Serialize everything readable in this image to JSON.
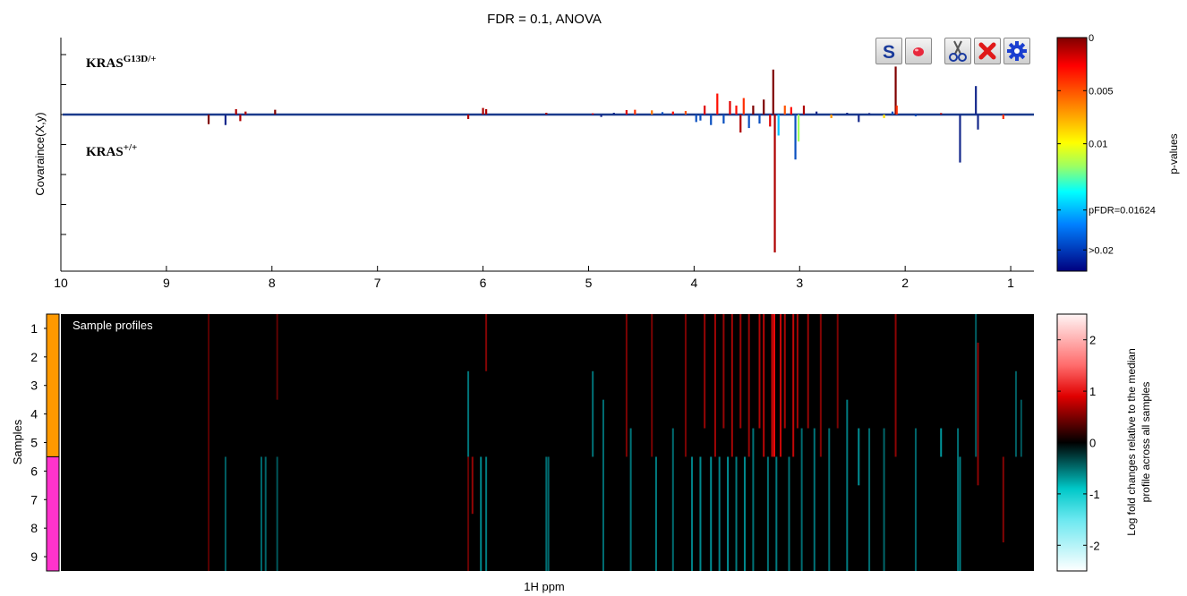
{
  "chart_data": [
    {
      "type": "line",
      "title": "FDR = 0.1, ANOVA",
      "xlabel": "",
      "ylabel": "Covaraince(X,y)",
      "xlim": [
        10,
        0.78
      ],
      "x_reversed": true,
      "x_ticks": [
        10,
        9,
        8,
        7,
        6,
        5,
        4,
        3,
        2,
        1
      ],
      "y_ticks_labeled": false,
      "annotations": [
        {
          "base": "KRAS",
          "sup": "G13D/+",
          "position": "top-left"
        },
        {
          "base": "KRAS",
          "sup": "+/+",
          "position": "left"
        }
      ],
      "series": [
        {
          "peaks": [
            {
              "x": 8.6,
              "y": -0.32,
              "p": 0.0
            },
            {
              "x": 8.44,
              "y": -0.35,
              "p": 0.03
            },
            {
              "x": 8.34,
              "y": 0.18,
              "p": 0.001
            },
            {
              "x": 8.3,
              "y": -0.22,
              "p": 0.001
            },
            {
              "x": 8.25,
              "y": 0.1,
              "p": 0.001
            },
            {
              "x": 7.97,
              "y": 0.16,
              "p": 0.0
            },
            {
              "x": 6.14,
              "y": -0.15,
              "p": 0.001
            },
            {
              "x": 6.0,
              "y": 0.22,
              "p": 0.001
            },
            {
              "x": 5.97,
              "y": 0.18,
              "p": 0.001
            },
            {
              "x": 5.4,
              "y": 0.06,
              "p": 0.001
            },
            {
              "x": 4.96,
              "y": 0.04,
              "p": 0.002
            },
            {
              "x": 4.88,
              "y": -0.08,
              "p": 0.03
            },
            {
              "x": 4.76,
              "y": 0.06,
              "p": 0.03
            },
            {
              "x": 4.64,
              "y": 0.15,
              "p": 0.002
            },
            {
              "x": 4.56,
              "y": 0.16,
              "p": 0.004
            },
            {
              "x": 4.4,
              "y": 0.14,
              "p": 0.006
            },
            {
              "x": 4.3,
              "y": 0.08,
              "p": 0.02
            },
            {
              "x": 4.2,
              "y": 0.1,
              "p": 0.003
            },
            {
              "x": 4.08,
              "y": 0.12,
              "p": 0.005
            },
            {
              "x": 3.98,
              "y": -0.25,
              "p": 0.02
            },
            {
              "x": 3.94,
              "y": -0.2,
              "p": 0.02
            },
            {
              "x": 3.9,
              "y": 0.3,
              "p": 0.002
            },
            {
              "x": 3.84,
              "y": -0.35,
              "p": 0.02
            },
            {
              "x": 3.78,
              "y": 0.7,
              "p": 0.003
            },
            {
              "x": 3.72,
              "y": -0.3,
              "p": 0.02
            },
            {
              "x": 3.66,
              "y": 0.45,
              "p": 0.002
            },
            {
              "x": 3.6,
              "y": 0.3,
              "p": 0.003
            },
            {
              "x": 3.56,
              "y": -0.6,
              "p": 0.001
            },
            {
              "x": 3.53,
              "y": 0.55,
              "p": 0.004
            },
            {
              "x": 3.48,
              "y": -0.45,
              "p": 0.02
            },
            {
              "x": 3.44,
              "y": 0.3,
              "p": 0.0
            },
            {
              "x": 3.38,
              "y": -0.3,
              "p": 0.02
            },
            {
              "x": 3.34,
              "y": 0.5,
              "p": 0.0
            },
            {
              "x": 3.28,
              "y": -0.4,
              "p": 0.002
            },
            {
              "x": 3.25,
              "y": 1.5,
              "p": 0.0
            },
            {
              "x": 3.235,
              "y": -4.6,
              "p": 0.001
            },
            {
              "x": 3.2,
              "y": -0.7,
              "p": 0.016
            },
            {
              "x": 3.14,
              "y": 0.3,
              "p": 0.005
            },
            {
              "x": 3.08,
              "y": 0.25,
              "p": 0.003
            },
            {
              "x": 3.04,
              "y": -1.5,
              "p": 0.02
            },
            {
              "x": 3.01,
              "y": -0.9,
              "p": 0.012
            },
            {
              "x": 2.96,
              "y": 0.3,
              "p": 0.001
            },
            {
              "x": 2.84,
              "y": 0.1,
              "p": 0.03
            },
            {
              "x": 2.7,
              "y": -0.12,
              "p": 0.007
            },
            {
              "x": 2.55,
              "y": 0.06,
              "p": 0.03
            },
            {
              "x": 2.44,
              "y": -0.25,
              "p": 0.03
            },
            {
              "x": 2.34,
              "y": 0.05,
              "p": 0.03
            },
            {
              "x": 2.2,
              "y": -0.12,
              "p": 0.009
            },
            {
              "x": 2.12,
              "y": 0.1,
              "p": 0.02
            },
            {
              "x": 2.09,
              "y": 1.6,
              "p": 0.0
            },
            {
              "x": 2.08,
              "y": 0.3,
              "p": 0.004
            },
            {
              "x": 1.9,
              "y": -0.06,
              "p": 0.02
            },
            {
              "x": 1.66,
              "y": 0.05,
              "p": 0.001
            },
            {
              "x": 1.48,
              "y": -1.6,
              "p": 0.03
            },
            {
              "x": 1.33,
              "y": 0.95,
              "p": 0.03
            },
            {
              "x": 1.31,
              "y": -0.5,
              "p": 0.03
            },
            {
              "x": 1.07,
              "y": -0.15,
              "p": 0.004
            }
          ]
        }
      ]
    },
    {
      "type": "heatmap",
      "title": "Sample profiles",
      "xlabel": "1H ppm",
      "ylabel": "Samples",
      "xlim": [
        10,
        0.78
      ],
      "rows": [
        "1",
        "2",
        "3",
        "4",
        "5",
        "6",
        "7",
        "8",
        "9"
      ],
      "groups": [
        {
          "rows": [
            1,
            5
          ],
          "color": "#ff9900"
        },
        {
          "rows": [
            6,
            9
          ],
          "color": "#ff33cc"
        }
      ],
      "value_range": [
        -2.5,
        2.5
      ],
      "stripes": [
        {
          "x": 8.6,
          "rows": [
            1,
            9
          ],
          "v": 0.3
        },
        {
          "x": 8.44,
          "rows": [
            6,
            9
          ],
          "v": -0.6
        },
        {
          "x": 8.1,
          "rows": [
            6,
            9
          ],
          "v": -0.7
        },
        {
          "x": 8.06,
          "rows": [
            6,
            9
          ],
          "v": -0.7
        },
        {
          "x": 7.95,
          "rows": [
            6,
            9
          ],
          "v": -0.5
        },
        {
          "x": 7.95,
          "rows": [
            1,
            3
          ],
          "v": 0.4
        },
        {
          "x": 6.14,
          "rows": [
            3,
            5
          ],
          "v": -0.9
        },
        {
          "x": 6.14,
          "rows": [
            6,
            9
          ],
          "v": 0.5
        },
        {
          "x": 6.1,
          "rows": [
            6,
            7
          ],
          "v": 1.0
        },
        {
          "x": 6.02,
          "rows": [
            6,
            9
          ],
          "v": -1.2
        },
        {
          "x": 5.97,
          "rows": [
            6,
            9
          ],
          "v": -1.0
        },
        {
          "x": 5.97,
          "rows": [
            1,
            2
          ],
          "v": 0.8
        },
        {
          "x": 5.4,
          "rows": [
            6,
            9
          ],
          "v": -0.8
        },
        {
          "x": 5.38,
          "rows": [
            6,
            9
          ],
          "v": -0.7
        },
        {
          "x": 4.96,
          "rows": [
            3,
            5
          ],
          "v": -0.9
        },
        {
          "x": 4.86,
          "rows": [
            4,
            9
          ],
          "v": -0.8
        },
        {
          "x": 4.64,
          "rows": [
            1,
            5
          ],
          "v": 0.7
        },
        {
          "x": 4.6,
          "rows": [
            5,
            9
          ],
          "v": -0.9
        },
        {
          "x": 4.4,
          "rows": [
            1,
            5
          ],
          "v": 0.7
        },
        {
          "x": 4.36,
          "rows": [
            6,
            9
          ],
          "v": -1.0
        },
        {
          "x": 4.2,
          "rows": [
            5,
            9
          ],
          "v": -0.8
        },
        {
          "x": 4.08,
          "rows": [
            1,
            5
          ],
          "v": 0.7
        },
        {
          "x": 4.02,
          "rows": [
            6,
            9
          ],
          "v": -1.1
        },
        {
          "x": 3.94,
          "rows": [
            6,
            9
          ],
          "v": -1.2
        },
        {
          "x": 3.9,
          "rows": [
            1,
            4
          ],
          "v": 1.0
        },
        {
          "x": 3.84,
          "rows": [
            6,
            9
          ],
          "v": -1.3
        },
        {
          "x": 3.8,
          "rows": [
            1,
            5
          ],
          "v": 1.1
        },
        {
          "x": 3.76,
          "rows": [
            6,
            9
          ],
          "v": -1.1
        },
        {
          "x": 3.72,
          "rows": [
            1,
            4
          ],
          "v": 1.0
        },
        {
          "x": 3.68,
          "rows": [
            6,
            9
          ],
          "v": -1.3
        },
        {
          "x": 3.64,
          "rows": [
            1,
            5
          ],
          "v": 1.2
        },
        {
          "x": 3.6,
          "rows": [
            6,
            9
          ],
          "v": -1.0
        },
        {
          "x": 3.56,
          "rows": [
            1,
            4
          ],
          "v": 1.1
        },
        {
          "x": 3.52,
          "rows": [
            6,
            9
          ],
          "v": -1.2
        },
        {
          "x": 3.48,
          "rows": [
            1,
            5
          ],
          "v": 1.0
        },
        {
          "x": 3.44,
          "rows": [
            5,
            9
          ],
          "v": -0.9
        },
        {
          "x": 3.38,
          "rows": [
            1,
            4
          ],
          "v": 1.3
        },
        {
          "x": 3.34,
          "rows": [
            1,
            5
          ],
          "v": 1.4
        },
        {
          "x": 3.3,
          "rows": [
            6,
            9
          ],
          "v": -0.9
        },
        {
          "x": 3.26,
          "rows": [
            1,
            5
          ],
          "v": 1.8
        },
        {
          "x": 3.24,
          "rows": [
            1,
            5
          ],
          "v": 2.0
        },
        {
          "x": 3.22,
          "rows": [
            6,
            9
          ],
          "v": -1.0
        },
        {
          "x": 3.18,
          "rows": [
            1,
            5
          ],
          "v": 1.6
        },
        {
          "x": 3.14,
          "rows": [
            1,
            4
          ],
          "v": 1.2
        },
        {
          "x": 3.1,
          "rows": [
            6,
            9
          ],
          "v": -0.9
        },
        {
          "x": 3.06,
          "rows": [
            1,
            5
          ],
          "v": 1.5
        },
        {
          "x": 3.02,
          "rows": [
            1,
            4
          ],
          "v": 1.1
        },
        {
          "x": 2.98,
          "rows": [
            5,
            9
          ],
          "v": -0.8
        },
        {
          "x": 2.92,
          "rows": [
            1,
            4
          ],
          "v": 1.0
        },
        {
          "x": 2.86,
          "rows": [
            5,
            9
          ],
          "v": -0.9
        },
        {
          "x": 2.8,
          "rows": [
            1,
            5
          ],
          "v": 0.8
        },
        {
          "x": 2.72,
          "rows": [
            5,
            9
          ],
          "v": -0.8
        },
        {
          "x": 2.64,
          "rows": [
            1,
            4
          ],
          "v": 0.7
        },
        {
          "x": 2.55,
          "rows": [
            4,
            9
          ],
          "v": -1.0
        },
        {
          "x": 2.44,
          "rows": [
            5,
            6
          ],
          "v": -1.3
        },
        {
          "x": 2.34,
          "rows": [
            5,
            9
          ],
          "v": -0.8
        },
        {
          "x": 2.2,
          "rows": [
            5,
            9
          ],
          "v": -0.7
        },
        {
          "x": 2.09,
          "rows": [
            1,
            5
          ],
          "v": 0.9
        },
        {
          "x": 1.9,
          "rows": [
            5,
            9
          ],
          "v": -0.7
        },
        {
          "x": 1.66,
          "rows": [
            5,
            5
          ],
          "v": -1.4
        },
        {
          "x": 1.5,
          "rows": [
            5,
            9
          ],
          "v": -0.9
        },
        {
          "x": 1.48,
          "rows": [
            6,
            9
          ],
          "v": -1.1
        },
        {
          "x": 1.33,
          "rows": [
            1,
            5
          ],
          "v": -0.6
        },
        {
          "x": 1.31,
          "rows": [
            2,
            6
          ],
          "v": 0.9
        },
        {
          "x": 1.07,
          "rows": [
            6,
            8
          ],
          "v": 0.8
        },
        {
          "x": 0.95,
          "rows": [
            3,
            5
          ],
          "v": -0.6
        },
        {
          "x": 0.9,
          "rows": [
            4,
            5
          ],
          "v": -0.5
        }
      ]
    }
  ],
  "colorbar_p": {
    "label": "p-values",
    "ticks": [
      "0",
      "0.005",
      "0.01",
      "pFDR=0.01624",
      ">0.02"
    ],
    "tick_values": [
      0,
      0.005,
      0.01,
      0.01624,
      0.02
    ],
    "max": 0.022,
    "colormap": "jet-reversed"
  },
  "colorbar_fold": {
    "label_line1": "Log fold changes relative to the median",
    "label_line2": "profile across all samples",
    "ticks": [
      "2",
      "1",
      "0",
      "-1",
      "-2"
    ],
    "tick_values": [
      2,
      1,
      0,
      -1,
      -2
    ],
    "range": [
      -2.5,
      2.5
    ]
  },
  "toolbar": [
    {
      "name": "s-button-icon",
      "icon": "S"
    },
    {
      "name": "record-button-icon",
      "icon": "dot"
    },
    {
      "name": "scissors-icon",
      "icon": "scissors"
    },
    {
      "name": "close-icon",
      "icon": "x"
    },
    {
      "name": "gear-icon",
      "icon": "gear"
    }
  ]
}
